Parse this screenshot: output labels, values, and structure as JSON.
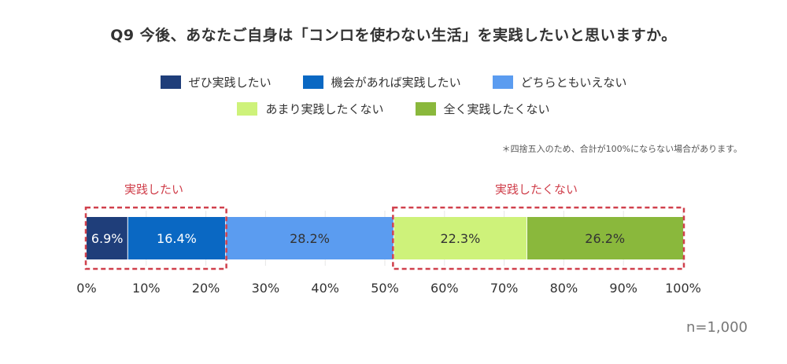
{
  "title": "Q9 今後、あなたご自身は「コンロを使わない生活」を実践したいと思いますか。",
  "legend_rows": [
    [
      {
        "label": "ぜひ実践したい",
        "color": "#1f3e7a"
      },
      {
        "label": "機会があれば実践したい",
        "color": "#0a68c3"
      },
      {
        "label": "どちらともいえない",
        "color": "#5b9cf0"
      }
    ],
    [
      {
        "label": "あまり実践したくない",
        "color": "#cef27a"
      },
      {
        "label": "全く実践したくない",
        "color": "#8ab83c"
      }
    ]
  ],
  "note": "＊四捨五入のため、合計が100%にならない場合があります。",
  "groups": {
    "want": "実践したい",
    "dont_want": "実践したくない",
    "highlight_color": "#d0404c"
  },
  "sample_size": "n=1,000",
  "chart_data": {
    "type": "bar",
    "orientation": "horizontal-stacked-100",
    "series": [
      {
        "name": "ぜひ実践したい",
        "values": [
          6.9
        ],
        "label": "6.9%",
        "color": "#1f3e7a",
        "text_color": "#ffffff"
      },
      {
        "name": "機会があれば実践したい",
        "values": [
          16.4
        ],
        "label": "16.4%",
        "color": "#0a68c3",
        "text_color": "#ffffff"
      },
      {
        "name": "どちらともいえない",
        "values": [
          28.2
        ],
        "label": "28.2%",
        "color": "#5b9cf0",
        "text_color": "#333333"
      },
      {
        "name": "あまり実践したくない",
        "values": [
          22.3
        ],
        "label": "22.3%",
        "color": "#cef27a",
        "text_color": "#333333"
      },
      {
        "name": "全く実践したくない",
        "values": [
          26.2
        ],
        "label": "26.2%",
        "color": "#8ab83c",
        "text_color": "#333333"
      }
    ],
    "xlim": [
      0,
      100
    ],
    "x_ticks": [
      "0%",
      "10%",
      "20%",
      "30%",
      "40%",
      "50%",
      "60%",
      "70%",
      "80%",
      "90%",
      "100%"
    ],
    "grid": true
  }
}
